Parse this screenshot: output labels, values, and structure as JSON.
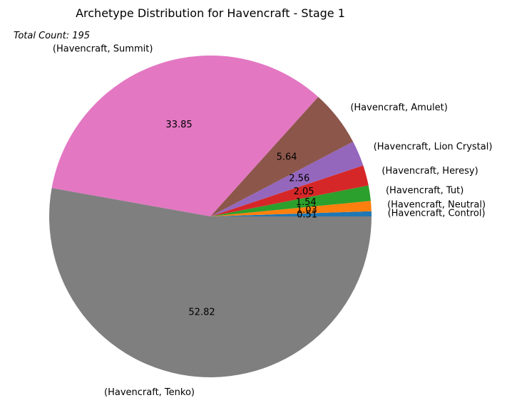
{
  "chart_data": {
    "type": "pie",
    "title": "Archetype Distribution for Havencraft - Stage 1",
    "subtitle": "Total Count: 195",
    "start_angle_deg": 0,
    "direction": "counterclockwise",
    "slices": [
      {
        "label": "(Havencraft, Control)",
        "value": 0.51,
        "pct_label": "0.51",
        "color": "#1f77b4"
      },
      {
        "label": "(Havencraft, Neutral)",
        "value": 1.03,
        "pct_label": "1.03",
        "color": "#ff7f0e"
      },
      {
        "label": "(Havencraft, Tut)",
        "value": 1.54,
        "pct_label": "1.54",
        "color": "#2ca02c"
      },
      {
        "label": "(Havencraft, Heresy)",
        "value": 2.05,
        "pct_label": "2.05",
        "color": "#d62728"
      },
      {
        "label": "(Havencraft, Lion Crystal)",
        "value": 2.56,
        "pct_label": "2.56",
        "color": "#9467bd"
      },
      {
        "label": "(Havencraft, Amulet)",
        "value": 5.64,
        "pct_label": "5.64",
        "color": "#8c564b"
      },
      {
        "label": "(Havencraft, Summit)",
        "value": 33.85,
        "pct_label": "33.85",
        "color": "#e377c2"
      },
      {
        "label": "(Havencraft, Tenko)",
        "value": 52.82,
        "pct_label": "52.82",
        "color": "#7f7f7f"
      }
    ]
  }
}
